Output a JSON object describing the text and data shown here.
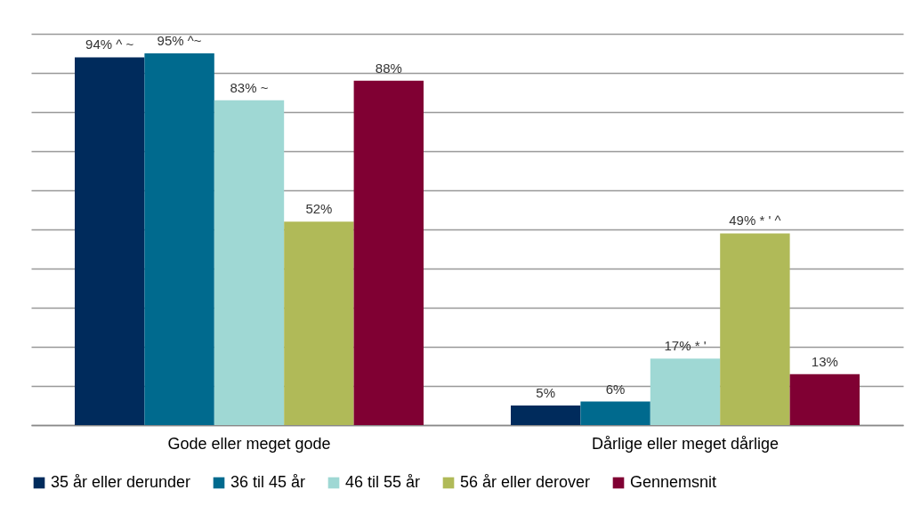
{
  "chart_data": {
    "type": "bar",
    "categories": [
      "Gode eller meget gode",
      "Dårlige eller meget dårlige"
    ],
    "series": [
      {
        "name": "35 år eller derunder",
        "color": "#002b5c",
        "values": [
          94,
          5
        ],
        "value_labels": [
          "94% ^ ~",
          "5%"
        ]
      },
      {
        "name": "36 til 45 år",
        "color": "#006a8e",
        "values": [
          95,
          6
        ],
        "value_labels": [
          "95% ^~",
          "6%"
        ]
      },
      {
        "name": "46 til 55 år",
        "color": "#9fd8d4",
        "values": [
          83,
          17
        ],
        "value_labels": [
          "83% ~",
          "17% * '"
        ]
      },
      {
        "name": "56 år eller derover",
        "color": "#b0ba58",
        "values": [
          52,
          49
        ],
        "value_labels": [
          "52%",
          "49% * ' ^"
        ]
      },
      {
        "name": "Gennemsnit",
        "color": "#800033",
        "values": [
          88,
          13
        ],
        "value_labels": [
          "88%",
          "13%"
        ]
      }
    ],
    "ylim": [
      0,
      100
    ],
    "yticks": [
      {
        "value": 0,
        "label": null
      },
      {
        "value": 10,
        "label": null
      },
      {
        "value": 20,
        "label": null
      },
      {
        "value": 30,
        "label": null
      },
      {
        "value": 40,
        "label": null
      },
      {
        "value": 50,
        "label": null
      },
      {
        "value": 60,
        "label": null
      },
      {
        "value": 70,
        "label": null
      },
      {
        "value": 80,
        "label": null
      },
      {
        "value": 90,
        "label": null
      },
      {
        "value": 100,
        "label": null
      }
    ],
    "grid": "y",
    "legend": "bottom",
    "tick_labels": "x"
  }
}
